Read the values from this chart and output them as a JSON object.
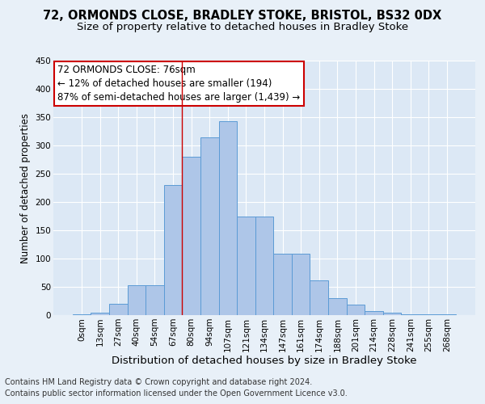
{
  "title": "72, ORMONDS CLOSE, BRADLEY STOKE, BRISTOL, BS32 0DX",
  "subtitle": "Size of property relative to detached houses in Bradley Stoke",
  "xlabel": "Distribution of detached houses by size in Bradley Stoke",
  "ylabel": "Number of detached properties",
  "bin_labels": [
    "0sqm",
    "13sqm",
    "27sqm",
    "40sqm",
    "54sqm",
    "67sqm",
    "80sqm",
    "94sqm",
    "107sqm",
    "121sqm",
    "134sqm",
    "147sqm",
    "161sqm",
    "174sqm",
    "188sqm",
    "201sqm",
    "214sqm",
    "228sqm",
    "241sqm",
    "255sqm",
    "268sqm"
  ],
  "bar_heights": [
    2,
    5,
    20,
    53,
    53,
    230,
    280,
    315,
    343,
    175,
    175,
    108,
    108,
    62,
    30,
    18,
    7,
    5,
    2,
    1,
    1
  ],
  "bar_color": "#aec6e8",
  "bar_edge_color": "#5b9bd5",
  "vline_x": 5.5,
  "vline_color": "#cc0000",
  "annotation_line1": "72 ORMONDS CLOSE: 76sqm",
  "annotation_line2": "← 12% of detached houses are smaller (194)",
  "annotation_line3": "87% of semi-detached houses are larger (1,439) →",
  "annotation_box_color": "#ffffff",
  "annotation_box_edge_color": "#cc0000",
  "ylim": [
    0,
    450
  ],
  "yticks": [
    0,
    50,
    100,
    150,
    200,
    250,
    300,
    350,
    400,
    450
  ],
  "bg_color": "#e8f0f8",
  "plot_bg_color": "#dce8f5",
  "footer_line1": "Contains HM Land Registry data © Crown copyright and database right 2024.",
  "footer_line2": "Contains public sector information licensed under the Open Government Licence v3.0.",
  "title_fontsize": 10.5,
  "subtitle_fontsize": 9.5,
  "xlabel_fontsize": 9.5,
  "ylabel_fontsize": 8.5,
  "tick_fontsize": 7.5,
  "annotation_fontsize": 8.5,
  "footer_fontsize": 7.0
}
